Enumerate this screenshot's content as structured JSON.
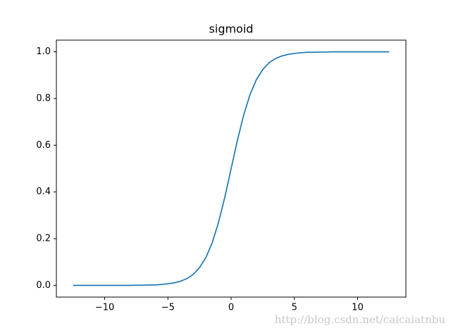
{
  "chart_data": {
    "type": "line",
    "title": "sigmoid",
    "x": [
      -12.5,
      -12,
      -11.5,
      -11,
      -10.5,
      -10,
      -9.5,
      -9,
      -8.5,
      -8,
      -7.5,
      -7,
      -6.5,
      -6,
      -5.5,
      -5,
      -4.5,
      -4,
      -3.5,
      -3,
      -2.5,
      -2,
      -1.5,
      -1,
      -0.5,
      0,
      0.5,
      1,
      1.5,
      2,
      2.5,
      3,
      3.5,
      4,
      4.5,
      5,
      5.5,
      6,
      6.5,
      7,
      7.5,
      8,
      8.5,
      9,
      9.5,
      10,
      10.5,
      11,
      11.5,
      12,
      12.5
    ],
    "series": [
      {
        "color": "#1f77b4",
        "values": [
          0,
          0,
          0,
          0,
          0,
          0,
          0,
          0,
          0,
          0,
          0.001,
          0.001,
          0.002,
          0.002,
          0.004,
          0.007,
          0.011,
          0.018,
          0.029,
          0.047,
          0.076,
          0.119,
          0.182,
          0.269,
          0.378,
          0.5,
          0.622,
          0.731,
          0.818,
          0.881,
          0.924,
          0.953,
          0.971,
          0.982,
          0.989,
          0.993,
          0.996,
          0.998,
          0.998,
          0.999,
          0.999,
          1,
          1,
          1,
          1,
          1,
          1,
          1,
          1,
          1,
          1
        ]
      }
    ],
    "xlim": [
      -13.82,
      13.82
    ],
    "xticks": [
      {
        "value": -10,
        "label": "−10"
      },
      {
        "value": -5,
        "label": "−5"
      },
      0,
      5,
      10
    ],
    "ylim": [
      -0.05,
      1.05
    ],
    "yticks": [
      {
        "value": 0,
        "label": "0.0"
      },
      0.2,
      0.4,
      0.6,
      0.8,
      {
        "value": 1,
        "label": "1.0"
      }
    ],
    "grid": false,
    "annotations": [
      "http://blog.csdn.net/caicaiatnbu"
    ]
  }
}
